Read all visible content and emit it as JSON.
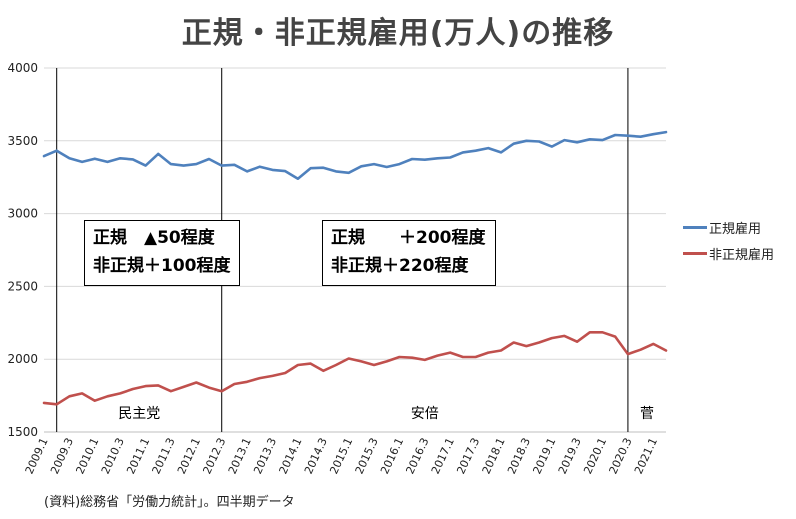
{
  "title": "正規・非正規雇用(万人)の推移",
  "source": "(資料)総務省「労働力統計」。四半期データ",
  "colors": {
    "regular": "#4f81bd",
    "nonregular": "#c0504d"
  },
  "notes": [
    {
      "line1": "正規　▲50程度",
      "line2": "非正規＋100程度"
    },
    {
      "line1": "正規　　＋200程度",
      "line2": "非正規＋220程度"
    }
  ],
  "chart_data": {
    "type": "line",
    "title": "正規・非正規雇用(万人)の推移",
    "x_tick_labels": [
      "2009.1",
      "2009.3",
      "2010.1",
      "2010.3",
      "2011.1",
      "2011.3",
      "2012.1",
      "2012.3",
      "2013.1",
      "2013.3",
      "2014.1",
      "2014.3",
      "2015.1",
      "2015.3",
      "2016.1",
      "2016.3",
      "2017.1",
      "2017.3",
      "2018.1",
      "2018.3",
      "2019.1",
      "2019.3",
      "2020.1",
      "2020.3",
      "2021.1"
    ],
    "ylim": [
      1500,
      4000
    ],
    "y_ticks": [
      1500,
      2000,
      2500,
      3000,
      3500,
      4000
    ],
    "grid": "horizontal",
    "legend_position": "right",
    "series": [
      {
        "name": "正規雇用",
        "values": [
          3395,
          3432,
          3380,
          3355,
          3377,
          3355,
          3380,
          3372,
          3330,
          3410,
          3340,
          3330,
          3340,
          3375,
          3330,
          3335,
          3290,
          3322,
          3300,
          3292,
          3240,
          3312,
          3315,
          3290,
          3280,
          3325,
          3340,
          3320,
          3340,
          3375,
          3370,
          3380,
          3385,
          3420,
          3432,
          3450,
          3420,
          3480,
          3500,
          3495,
          3460,
          3505,
          3490,
          3510,
          3505,
          3540,
          3535,
          3528,
          3545,
          3560
        ]
      },
      {
        "name": "非正規雇用",
        "values": [
          1700,
          1690,
          1745,
          1765,
          1715,
          1745,
          1765,
          1795,
          1815,
          1820,
          1780,
          1810,
          1840,
          1805,
          1780,
          1830,
          1845,
          1870,
          1885,
          1905,
          1960,
          1970,
          1920,
          1960,
          2005,
          1985,
          1960,
          1985,
          2015,
          2010,
          1995,
          2025,
          2045,
          2015,
          2015,
          2045,
          2060,
          2115,
          2090,
          2115,
          2145,
          2160,
          2120,
          2185,
          2185,
          2155,
          2035,
          2065,
          2105,
          2060
        ]
      }
    ],
    "series_end_value": {
      "非正規雇用": 2060
    },
    "eras": [
      {
        "label": "民主党",
        "start_index": 1,
        "end_index": 14
      },
      {
        "label": "安倍",
        "start_index": 14,
        "end_index": 46
      },
      {
        "label": "菅",
        "start_index": 46,
        "end_index": 49
      }
    ]
  }
}
